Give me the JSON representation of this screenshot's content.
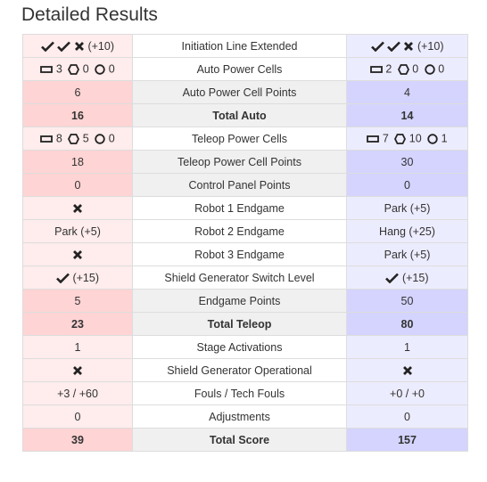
{
  "header": {
    "title": "Detailed Results"
  },
  "rows": [
    {
      "label": "Initiation Line Extended",
      "red": "(+10)",
      "blue": "(+10)"
    },
    {
      "label": "Auto Power Cells",
      "red_cells": {
        "bottom": "3",
        "outer": "0",
        "inner": "0"
      },
      "blue_cells": {
        "bottom": "2",
        "outer": "0",
        "inner": "0"
      }
    },
    {
      "label": "Auto Power Cell Points",
      "red": "6",
      "blue": "4"
    },
    {
      "label": "Total Auto",
      "red": "16",
      "blue": "14"
    },
    {
      "label": "Teleop Power Cells",
      "red_cells": {
        "bottom": "8",
        "outer": "5",
        "inner": "0"
      },
      "blue_cells": {
        "bottom": "7",
        "outer": "10",
        "inner": "1"
      }
    },
    {
      "label": "Teleop Power Cell Points",
      "red": "18",
      "blue": "30"
    },
    {
      "label": "Control Panel Points",
      "red": "0",
      "blue": "0"
    },
    {
      "label": "Robot 1 Endgame",
      "red": "",
      "blue": "Park (+5)"
    },
    {
      "label": "Robot 2 Endgame",
      "red": "Park (+5)",
      "blue": "Hang (+25)"
    },
    {
      "label": "Robot 3 Endgame",
      "red": "",
      "blue": "Park (+5)"
    },
    {
      "label": "Shield Generator Switch Level",
      "red": "(+15)",
      "blue": "(+15)"
    },
    {
      "label": "Endgame Points",
      "red": "5",
      "blue": "50"
    },
    {
      "label": "Total Teleop",
      "red": "23",
      "blue": "80"
    },
    {
      "label": "Stage Activations",
      "red": "1",
      "blue": "1"
    },
    {
      "label": "Shield Generator Operational",
      "red": "",
      "blue": ""
    },
    {
      "label": "Fouls / Tech Fouls",
      "red": "+3 / +60",
      "blue": "+0 / +0"
    },
    {
      "label": "Adjustments",
      "red": "0",
      "blue": "0"
    },
    {
      "label": "Total Score",
      "red": "39",
      "blue": "157"
    }
  ],
  "colors": {
    "red_light": "#ffecec",
    "red_dark": "#ffd4d4",
    "blue_light": "#ececff",
    "blue_dark": "#d4d4ff",
    "mid_gray": "#f0f0f0"
  },
  "icons": {
    "check": "check-icon",
    "cross": "cross-icon",
    "bottom_port": "rectangle-bottom-port-icon",
    "outer_port": "hexagon-outer-port-icon",
    "inner_port": "circle-inner-port-icon"
  }
}
